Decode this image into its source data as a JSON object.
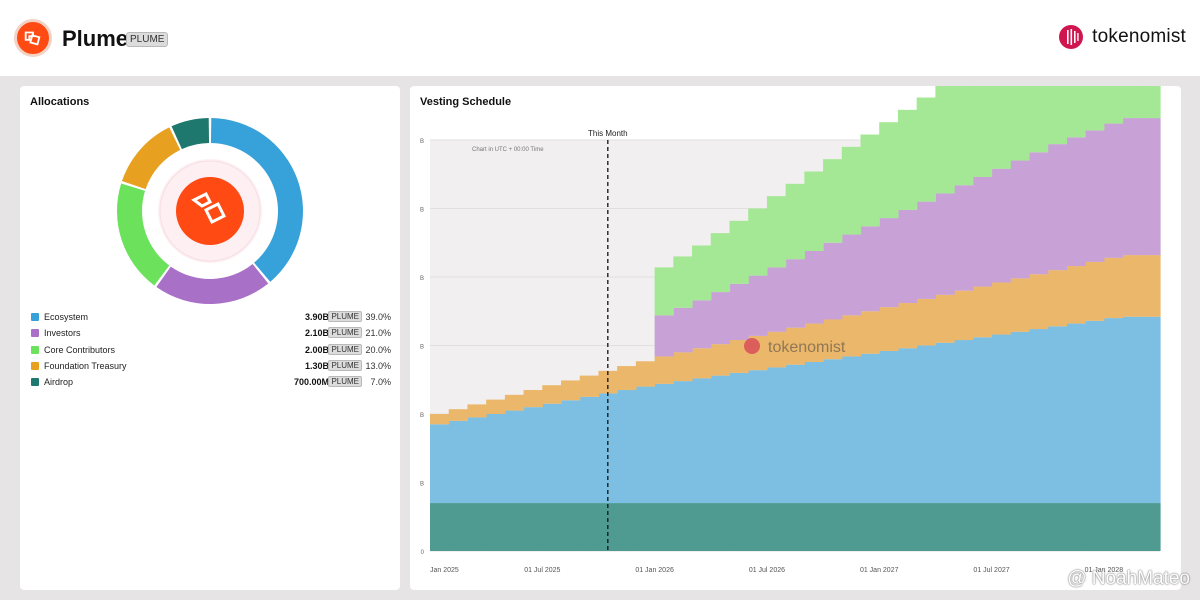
{
  "header": {
    "project_name": "Plume",
    "ticker": "PLUME",
    "brand": "tokenomist"
  },
  "allocations": {
    "title": "Allocations",
    "items": [
      {
        "name": "Ecosystem",
        "value": "3.90B",
        "ticker": "PLUME",
        "pct": "39.0%",
        "share": 39.0,
        "color": "#37a2da"
      },
      {
        "name": "Investors",
        "value": "2.10B",
        "ticker": "PLUME",
        "pct": "21.0%",
        "share": 21.0,
        "color": "#a970c7"
      },
      {
        "name": "Core Contributors",
        "value": "2.00B",
        "ticker": "PLUME",
        "pct": "20.0%",
        "share": 20.0,
        "color": "#6be15c"
      },
      {
        "name": "Foundation Treasury",
        "value": "1.30B",
        "ticker": "PLUME",
        "pct": "13.0%",
        "share": 13.0,
        "color": "#e8a020"
      },
      {
        "name": "Airdrop",
        "value": "700.00M",
        "ticker": "PLUME",
        "pct": "7.0%",
        "share": 7.0,
        "color": "#1e786e"
      }
    ]
  },
  "vesting": {
    "title": "Vesting Schedule",
    "this_month_label": "This Month",
    "tz_note": "Chart in UTC + 00:00 Time",
    "watermark": "tokenomist",
    "y_tick_labels": [
      "B",
      "B",
      "B",
      "B",
      "B",
      "B",
      "0"
    ],
    "x_tick_labels": [
      "Jan 2025",
      "01 Jul 2025",
      "01 Jan 2026",
      "01 Jul 2026",
      "01 Jan 2027",
      "01 Jul 2027",
      "01 Jan 2028"
    ]
  },
  "chart_data": {
    "type": "area",
    "x_unit": "month",
    "x": [
      "2025-01",
      "2025-02",
      "2025-03",
      "2025-04",
      "2025-05",
      "2025-06",
      "2025-07",
      "2025-08",
      "2025-09",
      "2025-10",
      "2025-11",
      "2025-12",
      "2026-01",
      "2026-02",
      "2026-03",
      "2026-04",
      "2026-05",
      "2026-06",
      "2026-07",
      "2026-08",
      "2026-09",
      "2026-10",
      "2026-11",
      "2026-12",
      "2027-01",
      "2027-02",
      "2027-03",
      "2027-04",
      "2027-05",
      "2027-06",
      "2027-07",
      "2027-08",
      "2027-09",
      "2027-10",
      "2027-11",
      "2027-12",
      "2028-01",
      "2028-02",
      "2028-03"
    ],
    "this_month": "2025-10",
    "series": [
      {
        "name": "Airdrop",
        "color": "#4f9b92",
        "values": [
          0.7,
          0.7,
          0.7,
          0.7,
          0.7,
          0.7,
          0.7,
          0.7,
          0.7,
          0.7,
          0.7,
          0.7,
          0.7,
          0.7,
          0.7,
          0.7,
          0.7,
          0.7,
          0.7,
          0.7,
          0.7,
          0.7,
          0.7,
          0.7,
          0.7,
          0.7,
          0.7,
          0.7,
          0.7,
          0.7,
          0.7,
          0.7,
          0.7,
          0.7,
          0.7,
          0.7,
          0.7,
          0.7,
          0.7
        ]
      },
      {
        "name": "Ecosystem",
        "color": "#7dbfe3",
        "values": [
          1.15,
          1.2,
          1.25,
          1.3,
          1.35,
          1.4,
          1.45,
          1.5,
          1.55,
          1.6,
          1.65,
          1.7,
          1.74,
          1.78,
          1.82,
          1.86,
          1.9,
          1.94,
          1.98,
          2.02,
          2.06,
          2.1,
          2.14,
          2.18,
          2.22,
          2.26,
          2.3,
          2.34,
          2.38,
          2.42,
          2.46,
          2.5,
          2.54,
          2.58,
          2.62,
          2.66,
          2.7,
          2.72,
          2.72
        ]
      },
      {
        "name": "Foundation Treasury",
        "color": "#ebb76a",
        "values": [
          0.15,
          0.17,
          0.19,
          0.21,
          0.23,
          0.25,
          0.27,
          0.29,
          0.31,
          0.33,
          0.35,
          0.37,
          0.4,
          0.42,
          0.44,
          0.46,
          0.48,
          0.5,
          0.52,
          0.54,
          0.56,
          0.58,
          0.6,
          0.62,
          0.64,
          0.66,
          0.68,
          0.7,
          0.72,
          0.74,
          0.76,
          0.78,
          0.8,
          0.82,
          0.84,
          0.86,
          0.88,
          0.9,
          0.9
        ]
      },
      {
        "name": "Investors",
        "color": "#c8a2d6",
        "values": [
          0,
          0,
          0,
          0,
          0,
          0,
          0,
          0,
          0,
          0,
          0,
          0,
          0.6,
          0.65,
          0.7,
          0.76,
          0.82,
          0.88,
          0.94,
          1.0,
          1.06,
          1.12,
          1.18,
          1.24,
          1.3,
          1.36,
          1.42,
          1.48,
          1.54,
          1.6,
          1.66,
          1.72,
          1.78,
          1.84,
          1.88,
          1.92,
          1.96,
          2.0,
          2.0
        ]
      },
      {
        "name": "Core Contributors",
        "color": "#a4e794",
        "values": [
          0,
          0,
          0,
          0,
          0,
          0,
          0,
          0,
          0,
          0,
          0,
          0,
          0.7,
          0.75,
          0.8,
          0.86,
          0.92,
          0.98,
          1.04,
          1.1,
          1.16,
          1.22,
          1.28,
          1.34,
          1.4,
          1.46,
          1.52,
          1.58,
          1.64,
          1.7,
          1.76,
          1.82,
          1.88,
          1.94,
          1.96,
          1.98,
          2.0,
          2.0,
          2.0
        ]
      }
    ]
  },
  "watermark_footer": {
    "text": "@ NoahMateo"
  }
}
